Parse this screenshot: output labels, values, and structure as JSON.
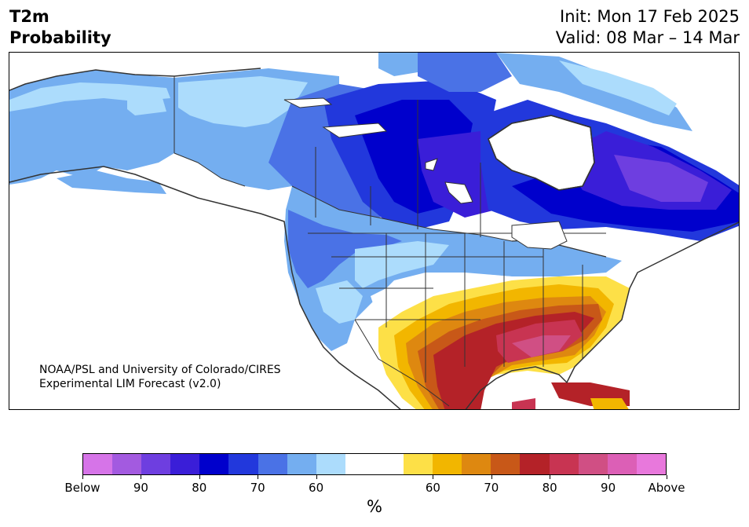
{
  "title": {
    "line1": "T2m",
    "line2": "Probability"
  },
  "dates": {
    "init": "Init: Mon 17 Feb 2025",
    "valid": "Valid: 08 Mar – 14 Mar"
  },
  "credit": {
    "line1": "NOAA/PSL and University of Colorado/CIRES",
    "line2": "Experimental LIM Forecast (v2.0)"
  },
  "colorbar": {
    "colors": [
      "#d674e8",
      "#a35ae0",
      "#6e3ee0",
      "#3a1ed8",
      "#0000cc",
      "#2238dc",
      "#4a72e6",
      "#74aef0",
      "#acdcfc",
      "#ffffff",
      "#ffffff",
      "#fde047",
      "#f2b600",
      "#de8810",
      "#c85818",
      "#b42228",
      "#c83452",
      "#d04f84",
      "#dc5fb6",
      "#e878dc"
    ],
    "labels": [
      "Below",
      "90",
      "80",
      "70",
      "60",
      "60",
      "70",
      "80",
      "90",
      "Above"
    ],
    "unit": "%"
  },
  "legend_colors": {
    "below_strong": "#0000cc",
    "below_weak": "#acdcfc",
    "above_weak": "#fde047",
    "above_strong": "#b42228",
    "land_outline": "#333333"
  }
}
